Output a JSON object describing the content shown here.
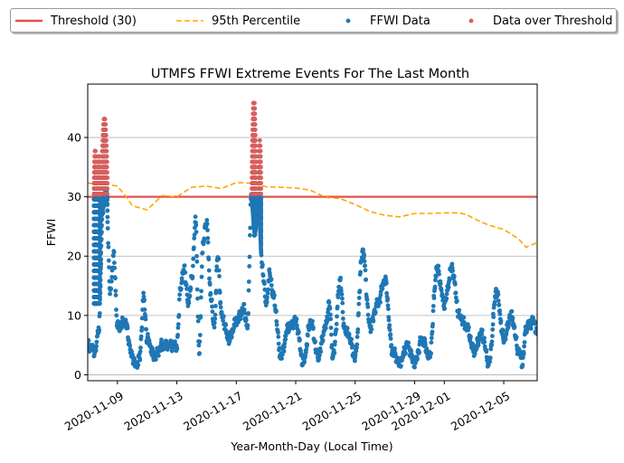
{
  "chart_data": {
    "type": "scatter",
    "title": "UTMFS FFWI Extreme Events For The Last Month",
    "xlabel": "Year-Month-Day (Local Time)",
    "ylabel": "FFWI",
    "xlim": [
      "2020-11-07T00:00",
      "2020-12-07T06:00"
    ],
    "ylim": [
      -1,
      49
    ],
    "yticks": [
      0,
      10,
      20,
      30,
      40
    ],
    "xticks": [
      "2020-11-09",
      "2020-11-13",
      "2020-11-17",
      "2020-11-21",
      "2020-11-25",
      "2020-11-29",
      "2020-12-01",
      "2020-12-05"
    ],
    "grid": "horizontal",
    "legend_position": "top (above plot), 4 columns",
    "threshold": {
      "name": "Threshold (30)",
      "value": 30,
      "color": "#e05050"
    },
    "percentile_95": {
      "name": "95th Percentile",
      "color": "#ffa500",
      "points": [
        [
          "2020-11-07T00:00",
          32.3
        ],
        [
          "2020-11-08T00:00",
          32.2
        ],
        [
          "2020-11-09T00:00",
          31.8
        ],
        [
          "2020-11-09T12:00",
          30.3
        ],
        [
          "2020-11-10T00:00",
          28.5
        ],
        [
          "2020-11-11T00:00",
          27.8
        ],
        [
          "2020-11-12T00:00",
          30.2
        ],
        [
          "2020-11-13T00:00",
          30.0
        ],
        [
          "2020-11-14T00:00",
          31.6
        ],
        [
          "2020-11-15T00:00",
          31.8
        ],
        [
          "2020-11-16T00:00",
          31.4
        ],
        [
          "2020-11-17T00:00",
          32.4
        ],
        [
          "2020-11-18T00:00",
          32.3
        ],
        [
          "2020-11-19T00:00",
          31.7
        ],
        [
          "2020-11-20T00:00",
          31.6
        ],
        [
          "2020-11-21T00:00",
          31.5
        ],
        [
          "2020-11-22T00:00",
          31.1
        ],
        [
          "2020-11-23T00:00",
          29.9
        ],
        [
          "2020-11-24T00:00",
          29.7
        ],
        [
          "2020-11-25T00:00",
          28.7
        ],
        [
          "2020-11-26T00:00",
          27.5
        ],
        [
          "2020-11-27T00:00",
          26.9
        ],
        [
          "2020-11-28T00:00",
          26.6
        ],
        [
          "2020-11-29T00:00",
          27.2
        ],
        [
          "2020-11-30T00:00",
          27.2
        ],
        [
          "2020-12-01T00:00",
          27.3
        ],
        [
          "2020-12-02T00:00",
          27.3
        ],
        [
          "2020-12-02T12:00",
          27.0
        ],
        [
          "2020-12-03T00:00",
          26.3
        ],
        [
          "2020-12-04T00:00",
          25.2
        ],
        [
          "2020-12-05T00:00",
          24.5
        ],
        [
          "2020-12-06T00:00",
          22.9
        ],
        [
          "2020-12-06T12:00",
          21.5
        ],
        [
          "2020-12-07T06:00",
          22.3
        ]
      ]
    },
    "ffwi": {
      "name": "FFWI Data",
      "color": "#1f77b4",
      "series_hourly_from": "2020-11-07T00:00",
      "keypoints": [
        [
          "2020-11-07T00:00",
          5
        ],
        [
          "2020-11-07T12:00",
          4
        ],
        [
          "2020-11-07T18:00",
          8
        ],
        [
          "2020-11-08T00:00",
          28
        ],
        [
          "2020-11-08T06:00",
          31
        ],
        [
          "2020-11-08T12:00",
          14
        ],
        [
          "2020-11-08T18:00",
          20
        ],
        [
          "2020-11-09T00:00",
          8
        ],
        [
          "2020-11-09T12:00",
          9
        ],
        [
          "2020-11-10T00:00",
          3
        ],
        [
          "2020-11-10T06:00",
          1.5
        ],
        [
          "2020-11-10T12:00",
          3
        ],
        [
          "2020-11-10T18:00",
          13
        ],
        [
          "2020-11-11T00:00",
          6
        ],
        [
          "2020-11-11T12:00",
          3
        ],
        [
          "2020-11-12T00:00",
          5
        ],
        [
          "2020-11-12T12:00",
          5
        ],
        [
          "2020-11-13T00:00",
          5
        ],
        [
          "2020-11-13T06:00",
          15
        ],
        [
          "2020-11-13T12:00",
          18
        ],
        [
          "2020-11-13T18:00",
          12
        ],
        [
          "2020-11-14T00:00",
          16
        ],
        [
          "2020-11-14T06:00",
          26
        ],
        [
          "2020-11-14T12:00",
          4
        ],
        [
          "2020-11-14T18:00",
          22
        ],
        [
          "2020-11-15T00:00",
          26
        ],
        [
          "2020-11-15T06:00",
          14
        ],
        [
          "2020-11-15T12:00",
          8
        ],
        [
          "2020-11-15T18:00",
          20
        ],
        [
          "2020-11-16T00:00",
          10
        ],
        [
          "2020-11-16T12:00",
          6
        ],
        [
          "2020-11-17T00:00",
          9
        ],
        [
          "2020-11-17T12:00",
          11
        ],
        [
          "2020-11-17T18:00",
          8
        ],
        [
          "2020-11-18T00:00",
          30
        ],
        [
          "2020-11-18T06:00",
          24
        ],
        [
          "2020-11-18T12:00",
          29
        ],
        [
          "2020-11-18T18:00",
          18
        ],
        [
          "2020-11-19T00:00",
          12
        ],
        [
          "2020-11-19T06:00",
          17
        ],
        [
          "2020-11-19T12:00",
          13
        ],
        [
          "2020-11-20T00:00",
          3
        ],
        [
          "2020-11-20T12:00",
          8
        ],
        [
          "2020-11-21T00:00",
          9
        ],
        [
          "2020-11-21T12:00",
          2
        ],
        [
          "2020-11-22T00:00",
          9
        ],
        [
          "2020-11-22T12:00",
          3
        ],
        [
          "2020-11-23T00:00",
          8
        ],
        [
          "2020-11-23T06:00",
          12
        ],
        [
          "2020-11-23T12:00",
          3
        ],
        [
          "2020-11-24T00:00",
          16
        ],
        [
          "2020-11-24T06:00",
          8
        ],
        [
          "2020-11-24T12:00",
          7
        ],
        [
          "2020-11-25T00:00",
          3
        ],
        [
          "2020-11-25T12:00",
          21
        ],
        [
          "2020-11-26T00:00",
          8
        ],
        [
          "2020-11-26T12:00",
          12
        ],
        [
          "2020-11-27T00:00",
          16
        ],
        [
          "2020-11-27T12:00",
          4
        ],
        [
          "2020-11-28T00:00",
          2
        ],
        [
          "2020-11-28T12:00",
          5
        ],
        [
          "2020-11-29T00:00",
          2
        ],
        [
          "2020-11-29T12:00",
          6
        ],
        [
          "2020-11-30T00:00",
          3
        ],
        [
          "2020-11-30T12:00",
          18
        ],
        [
          "2020-12-01T00:00",
          12
        ],
        [
          "2020-12-01T12:00",
          18
        ],
        [
          "2020-12-02T00:00",
          10
        ],
        [
          "2020-12-02T12:00",
          8
        ],
        [
          "2020-12-03T00:00",
          4
        ],
        [
          "2020-12-03T12:00",
          7
        ],
        [
          "2020-12-04T00:00",
          2
        ],
        [
          "2020-12-04T12:00",
          14
        ],
        [
          "2020-12-05T00:00",
          6
        ],
        [
          "2020-12-05T12:00",
          10
        ],
        [
          "2020-12-06T00:00",
          4
        ],
        [
          "2020-12-06T06:00",
          2
        ],
        [
          "2020-12-06T12:00",
          8
        ],
        [
          "2020-12-07T00:00",
          9
        ],
        [
          "2020-12-07T06:00",
          7
        ]
      ]
    },
    "over_threshold": {
      "name": "Data over Threshold",
      "color": "#d65f5f",
      "clusters": [
        {
          "start": "2020-11-07T10:00",
          "end": "2020-11-07T14:00",
          "peak": 38
        },
        {
          "start": "2020-11-07T14:00",
          "end": "2020-11-07T22:00",
          "peak": 37
        },
        {
          "start": "2020-11-07T22:00",
          "end": "2020-11-08T08:00",
          "peak": 43.5
        },
        {
          "start": "2020-11-18T01:00",
          "end": "2020-11-18T08:00",
          "peak": 46.5
        },
        {
          "start": "2020-11-18T12:00",
          "end": "2020-11-18T16:00",
          "peak": 39.5
        }
      ]
    }
  }
}
